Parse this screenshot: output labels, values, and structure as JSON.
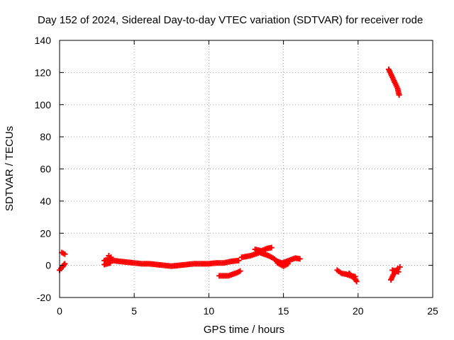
{
  "chart_data": {
    "type": "scatter",
    "title": "Day 152 of 2024, Sidereal Day-to-day VTEC variation (SDTVAR) for receiver rode",
    "xlabel": "GPS time / hours",
    "ylabel": "SDTVAR / TECUs",
    "xlim": [
      0,
      25
    ],
    "ylim": [
      -20,
      140
    ],
    "xticks": [
      0,
      5,
      10,
      15,
      20,
      25
    ],
    "yticks": [
      -20,
      0,
      20,
      40,
      60,
      80,
      100,
      120,
      140
    ],
    "grid": true,
    "marker": "plus",
    "marker_color": "#ff0000",
    "series": [
      {
        "name": "SDTVAR",
        "segments": [
          {
            "x": [
              0.0,
              0.1,
              0.2,
              0.3,
              0.35
            ],
            "y": [
              -3.0,
              -2.0,
              -1.0,
              0.5,
              1.0
            ]
          },
          {
            "x": [
              0.15,
              0.25,
              0.35
            ],
            "y": [
              8.0,
              7.5,
              7.0
            ]
          },
          {
            "x": [
              3.0,
              3.3,
              3.6,
              4.0,
              4.5,
              5.0,
              5.5,
              6.0,
              6.5,
              7.0,
              7.5,
              8.0,
              8.5,
              9.0,
              9.5,
              10.0,
              10.5,
              11.0,
              11.5,
              12.0
            ],
            "y": [
              3.0,
              4.0,
              3.0,
              2.5,
              2.0,
              1.5,
              1.0,
              1.0,
              0.5,
              0.0,
              -0.5,
              0.0,
              0.5,
              1.0,
              1.0,
              1.0,
              1.5,
              1.5,
              2.5,
              3.0
            ]
          },
          {
            "x": [
              3.0,
              3.2,
              3.4
            ],
            "y": [
              0.5,
              1.0,
              1.5
            ]
          },
          {
            "x": [
              3.3,
              3.45
            ],
            "y": [
              6.0,
              5.0
            ]
          },
          {
            "x": [
              10.7,
              11.0,
              11.3,
              11.6,
              11.9,
              12.1
            ],
            "y": [
              -6.5,
              -6.5,
              -6.5,
              -5.5,
              -4.5,
              -3.5
            ]
          },
          {
            "x": [
              12.2,
              12.5,
              12.8,
              13.1,
              13.4,
              13.7,
              14.0,
              14.3,
              14.6,
              14.9,
              15.2,
              15.5,
              15.8,
              16.1
            ],
            "y": [
              5.0,
              5.5,
              6.0,
              7.0,
              8.0,
              7.0,
              6.0,
              4.5,
              2.5,
              1.5,
              2.5,
              3.5,
              4.5,
              4.0
            ]
          },
          {
            "x": [
              13.1,
              13.5,
              13.9,
              14.2
            ],
            "y": [
              10.0,
              9.0,
              10.5,
              11.0
            ]
          },
          {
            "x": [
              14.6,
              15.0,
              15.3
            ],
            "y": [
              1.5,
              -0.5,
              1.0
            ]
          },
          {
            "x": [
              18.6,
              18.9,
              19.2,
              19.5,
              19.8
            ],
            "y": [
              -3.0,
              -5.0,
              -5.5,
              -6.5,
              -7.0
            ]
          },
          {
            "x": [
              19.4,
              19.6,
              19.8,
              19.9
            ],
            "y": [
              -5.0,
              -7.0,
              -8.5,
              -10.0
            ]
          },
          {
            "x": [
              22.2,
              22.35,
              22.5,
              22.65,
              22.8
            ],
            "y": [
              -9.0,
              -6.0,
              -4.0,
              -2.0,
              -1.0
            ]
          },
          {
            "x": [
              22.3,
              22.5,
              22.7
            ],
            "y": [
              -3.0,
              -3.5,
              -4.0
            ]
          },
          {
            "x": [
              22.05,
              22.2,
              22.35,
              22.5,
              22.65,
              22.75
            ],
            "y": [
              122.0,
              119.0,
              116.0,
              113.0,
              110.0,
              106.0
            ]
          }
        ]
      }
    ]
  }
}
